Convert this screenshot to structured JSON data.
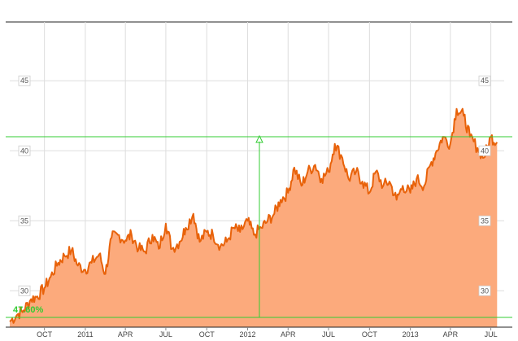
{
  "chart_data": {
    "type": "area",
    "title": "",
    "xlabel": "",
    "ylabel": "",
    "ylim": [
      27.4,
      49.2
    ],
    "x_tick_labels": [
      "OCT",
      "2011",
      "APR",
      "JUL",
      "OCT",
      "2012",
      "APR",
      "JUL",
      "OCT",
      "2013",
      "APR",
      "JUL"
    ],
    "y_tick_labels": [
      "30",
      "35",
      "40",
      "45"
    ],
    "y_tick_values": [
      30,
      35,
      40,
      45
    ],
    "grid": true,
    "series": [
      {
        "x": [
          "2010-07-15",
          "2010-08-01",
          "2010-08-15",
          "2010-09-01",
          "2010-09-15",
          "2010-10-01",
          "2010-10-15",
          "2010-11-01",
          "2010-11-15",
          "2010-12-01",
          "2010-12-15",
          "2011-01-01",
          "2011-01-15",
          "2011-02-01",
          "2011-02-15",
          "2011-03-01",
          "2011-03-15",
          "2011-04-01",
          "2011-04-15",
          "2011-05-01",
          "2011-05-15",
          "2011-06-01",
          "2011-06-15",
          "2011-07-01",
          "2011-07-15",
          "2011-08-01",
          "2011-08-15",
          "2011-09-01",
          "2011-09-15",
          "2011-10-01",
          "2011-10-15",
          "2011-11-01",
          "2011-11-15",
          "2011-12-01",
          "2011-12-15",
          "2012-01-01",
          "2012-01-15",
          "2012-02-01",
          "2012-02-15",
          "2012-03-01",
          "2012-03-15",
          "2012-04-01",
          "2012-04-15",
          "2012-05-01",
          "2012-05-15",
          "2012-06-01",
          "2012-06-15",
          "2012-07-01",
          "2012-07-15",
          "2012-08-01",
          "2012-08-15",
          "2012-09-01",
          "2012-09-15",
          "2012-10-01",
          "2012-10-15",
          "2012-11-01",
          "2012-11-15",
          "2012-12-01",
          "2012-12-15",
          "2013-01-01",
          "2013-01-15",
          "2013-02-01",
          "2013-02-15",
          "2013-03-01",
          "2013-03-15",
          "2013-04-01",
          "2013-04-15",
          "2013-05-01",
          "2013-05-15",
          "2013-06-01",
          "2013-06-15",
          "2013-07-01",
          "2013-07-15"
        ],
        "values": [
          27.8,
          28.3,
          28.6,
          29.4,
          29.6,
          30.2,
          31.0,
          32.0,
          32.5,
          32.9,
          31.8,
          31.5,
          32.0,
          32.6,
          31.2,
          33.8,
          34.0,
          33.6,
          34.0,
          33.0,
          32.8,
          34.0,
          33.0,
          34.8,
          33.0,
          33.5,
          34.5,
          35.5,
          33.5,
          34.2,
          34.0,
          33.2,
          33.5,
          34.5,
          34.2,
          35.0,
          34.0,
          34.5,
          35.0,
          35.5,
          36.5,
          37.0,
          38.8,
          37.5,
          38.5,
          39.0,
          38.0,
          38.5,
          40.5,
          39.5,
          38.0,
          38.5,
          37.8,
          37.0,
          38.5,
          37.5,
          37.8,
          36.5,
          37.5,
          37.0,
          38.0,
          37.5,
          39.0,
          40.0,
          41.0,
          40.5,
          43.0,
          42.5,
          41.0,
          40.2,
          39.5,
          41.0,
          40.6
        ]
      }
    ],
    "reference_lines": {
      "low": 28.1,
      "high": 41.0
    },
    "annotation": "47.60%",
    "colors": {
      "line": "#e8620a",
      "fill": "#fcaa7c",
      "reference": "#33cc33",
      "grid": "#dddddd"
    }
  }
}
